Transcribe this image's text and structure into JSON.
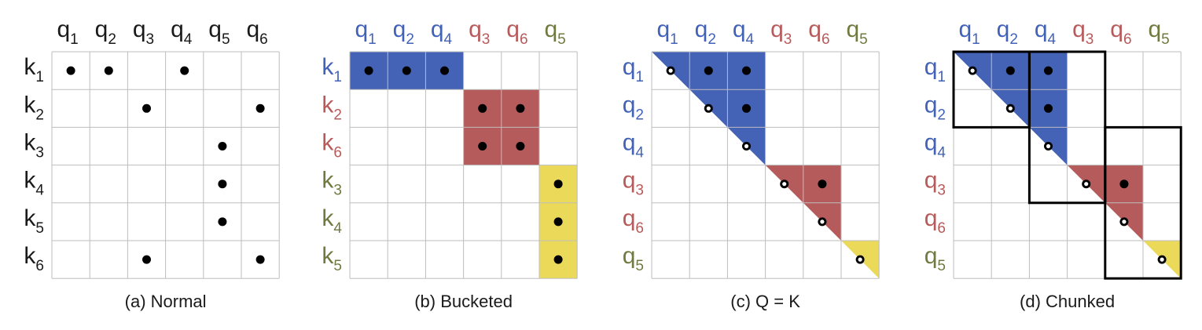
{
  "colors": {
    "text": "#1a1a1a",
    "blue": "#4262b8",
    "red": "#b85a5a",
    "olive": "#707a40",
    "blue_fill": "#4462b6",
    "red_fill": "#b65b5b",
    "yellow_fill": "#ebd95a",
    "grid": "#bdbdbd",
    "dot": "#000000"
  },
  "panels": [
    {
      "id": "a",
      "caption": "(a) Normal",
      "col_labels": [
        {
          "base": "q",
          "sub": "1",
          "group": "none"
        },
        {
          "base": "q",
          "sub": "2",
          "group": "none"
        },
        {
          "base": "q",
          "sub": "3",
          "group": "none"
        },
        {
          "base": "q",
          "sub": "4",
          "group": "none"
        },
        {
          "base": "q",
          "sub": "5",
          "group": "none"
        },
        {
          "base": "q",
          "sub": "6",
          "group": "none"
        }
      ],
      "row_labels": [
        {
          "base": "k",
          "sub": "1",
          "group": "none"
        },
        {
          "base": "k",
          "sub": "2",
          "group": "none"
        },
        {
          "base": "k",
          "sub": "3",
          "group": "none"
        },
        {
          "base": "k",
          "sub": "4",
          "group": "none"
        },
        {
          "base": "k",
          "sub": "5",
          "group": "none"
        },
        {
          "base": "k",
          "sub": "6",
          "group": "none"
        }
      ],
      "fills": [],
      "dots": [
        {
          "row": 0,
          "col": 0,
          "style": "solid"
        },
        {
          "row": 0,
          "col": 1,
          "style": "solid"
        },
        {
          "row": 0,
          "col": 3,
          "style": "solid"
        },
        {
          "row": 1,
          "col": 2,
          "style": "solid"
        },
        {
          "row": 1,
          "col": 5,
          "style": "solid"
        },
        {
          "row": 2,
          "col": 4,
          "style": "solid"
        },
        {
          "row": 3,
          "col": 4,
          "style": "solid"
        },
        {
          "row": 4,
          "col": 4,
          "style": "solid"
        },
        {
          "row": 5,
          "col": 2,
          "style": "solid"
        },
        {
          "row": 5,
          "col": 5,
          "style": "solid"
        }
      ],
      "chunks": []
    },
    {
      "id": "b",
      "caption": "(b) Bucketed",
      "col_labels": [
        {
          "base": "q",
          "sub": "1",
          "group": "blue"
        },
        {
          "base": "q",
          "sub": "2",
          "group": "blue"
        },
        {
          "base": "q",
          "sub": "4",
          "group": "blue"
        },
        {
          "base": "q",
          "sub": "3",
          "group": "red"
        },
        {
          "base": "q",
          "sub": "6",
          "group": "red"
        },
        {
          "base": "q",
          "sub": "5",
          "group": "olive"
        }
      ],
      "row_labels": [
        {
          "base": "k",
          "sub": "1",
          "group": "blue"
        },
        {
          "base": "k",
          "sub": "2",
          "group": "red"
        },
        {
          "base": "k",
          "sub": "6",
          "group": "red"
        },
        {
          "base": "k",
          "sub": "3",
          "group": "olive"
        },
        {
          "base": "k",
          "sub": "4",
          "group": "olive"
        },
        {
          "base": "k",
          "sub": "5",
          "group": "olive"
        }
      ],
      "fills": [
        {
          "shape": "rect",
          "row0": 0,
          "col0": 0,
          "row1": 1,
          "col1": 3,
          "color": "blue"
        },
        {
          "shape": "rect",
          "row0": 1,
          "col0": 3,
          "row1": 3,
          "col1": 5,
          "color": "red"
        },
        {
          "shape": "rect",
          "row0": 3,
          "col0": 5,
          "row1": 6,
          "col1": 6,
          "color": "yellow"
        }
      ],
      "dots": [
        {
          "row": 0,
          "col": 0,
          "style": "solid"
        },
        {
          "row": 0,
          "col": 1,
          "style": "solid"
        },
        {
          "row": 0,
          "col": 2,
          "style": "solid"
        },
        {
          "row": 1,
          "col": 3,
          "style": "solid"
        },
        {
          "row": 1,
          "col": 4,
          "style": "solid"
        },
        {
          "row": 2,
          "col": 3,
          "style": "solid"
        },
        {
          "row": 2,
          "col": 4,
          "style": "solid"
        },
        {
          "row": 3,
          "col": 5,
          "style": "solid"
        },
        {
          "row": 4,
          "col": 5,
          "style": "solid"
        },
        {
          "row": 5,
          "col": 5,
          "style": "solid"
        }
      ],
      "chunks": []
    },
    {
      "id": "c",
      "caption": "(c) Q = K",
      "col_labels": [
        {
          "base": "q",
          "sub": "1",
          "group": "blue"
        },
        {
          "base": "q",
          "sub": "2",
          "group": "blue"
        },
        {
          "base": "q",
          "sub": "4",
          "group": "blue"
        },
        {
          "base": "q",
          "sub": "3",
          "group": "red"
        },
        {
          "base": "q",
          "sub": "6",
          "group": "red"
        },
        {
          "base": "q",
          "sub": "5",
          "group": "olive"
        }
      ],
      "row_labels": [
        {
          "base": "q",
          "sub": "1",
          "group": "blue"
        },
        {
          "base": "q",
          "sub": "2",
          "group": "blue"
        },
        {
          "base": "q",
          "sub": "4",
          "group": "blue"
        },
        {
          "base": "q",
          "sub": "3",
          "group": "red"
        },
        {
          "base": "q",
          "sub": "6",
          "group": "red"
        },
        {
          "base": "q",
          "sub": "5",
          "group": "olive"
        }
      ],
      "fills": [
        {
          "shape": "tri",
          "start": 0,
          "end": 3,
          "color": "blue"
        },
        {
          "shape": "tri",
          "start": 3,
          "end": 5,
          "color": "red"
        },
        {
          "shape": "tri",
          "start": 5,
          "end": 6,
          "color": "yellow"
        }
      ],
      "dots": [
        {
          "row": 0,
          "col": 0,
          "style": "hollow"
        },
        {
          "row": 0,
          "col": 1,
          "style": "solid"
        },
        {
          "row": 0,
          "col": 2,
          "style": "solid"
        },
        {
          "row": 1,
          "col": 1,
          "style": "hollow"
        },
        {
          "row": 1,
          "col": 2,
          "style": "solid"
        },
        {
          "row": 2,
          "col": 2,
          "style": "hollow"
        },
        {
          "row": 3,
          "col": 3,
          "style": "hollow"
        },
        {
          "row": 3,
          "col": 4,
          "style": "solid"
        },
        {
          "row": 4,
          "col": 4,
          "style": "hollow"
        },
        {
          "row": 5,
          "col": 5,
          "style": "hollow"
        }
      ],
      "chunks": []
    },
    {
      "id": "d",
      "caption": "(d) Chunked",
      "col_labels": [
        {
          "base": "q",
          "sub": "1",
          "group": "blue"
        },
        {
          "base": "q",
          "sub": "2",
          "group": "blue"
        },
        {
          "base": "q",
          "sub": "4",
          "group": "blue"
        },
        {
          "base": "q",
          "sub": "3",
          "group": "red"
        },
        {
          "base": "q",
          "sub": "6",
          "group": "red"
        },
        {
          "base": "q",
          "sub": "5",
          "group": "olive"
        }
      ],
      "row_labels": [
        {
          "base": "q",
          "sub": "1",
          "group": "blue"
        },
        {
          "base": "q",
          "sub": "2",
          "group": "blue"
        },
        {
          "base": "q",
          "sub": "4",
          "group": "blue"
        },
        {
          "base": "q",
          "sub": "3",
          "group": "red"
        },
        {
          "base": "q",
          "sub": "6",
          "group": "red"
        },
        {
          "base": "q",
          "sub": "5",
          "group": "olive"
        }
      ],
      "fills": [
        {
          "shape": "tri",
          "start": 0,
          "end": 3,
          "color": "blue"
        },
        {
          "shape": "tri",
          "start": 3,
          "end": 5,
          "color": "red"
        },
        {
          "shape": "tri",
          "start": 5,
          "end": 6,
          "color": "yellow"
        }
      ],
      "dots": [
        {
          "row": 0,
          "col": 0,
          "style": "hollow"
        },
        {
          "row": 0,
          "col": 1,
          "style": "solid"
        },
        {
          "row": 0,
          "col": 2,
          "style": "solid"
        },
        {
          "row": 1,
          "col": 1,
          "style": "hollow"
        },
        {
          "row": 1,
          "col": 2,
          "style": "solid"
        },
        {
          "row": 2,
          "col": 2,
          "style": "hollow"
        },
        {
          "row": 3,
          "col": 3,
          "style": "hollow"
        },
        {
          "row": 3,
          "col": 4,
          "style": "solid"
        },
        {
          "row": 4,
          "col": 4,
          "style": "hollow"
        },
        {
          "row": 5,
          "col": 5,
          "style": "hollow"
        }
      ],
      "chunks": [
        {
          "row0": 0,
          "col0": 0,
          "row1": 2,
          "col1": 2
        },
        {
          "row0": 0,
          "col0": 2,
          "row1": 4,
          "col1": 4
        },
        {
          "row0": 2,
          "col0": 4,
          "row1": 6,
          "col1": 6
        }
      ]
    }
  ]
}
